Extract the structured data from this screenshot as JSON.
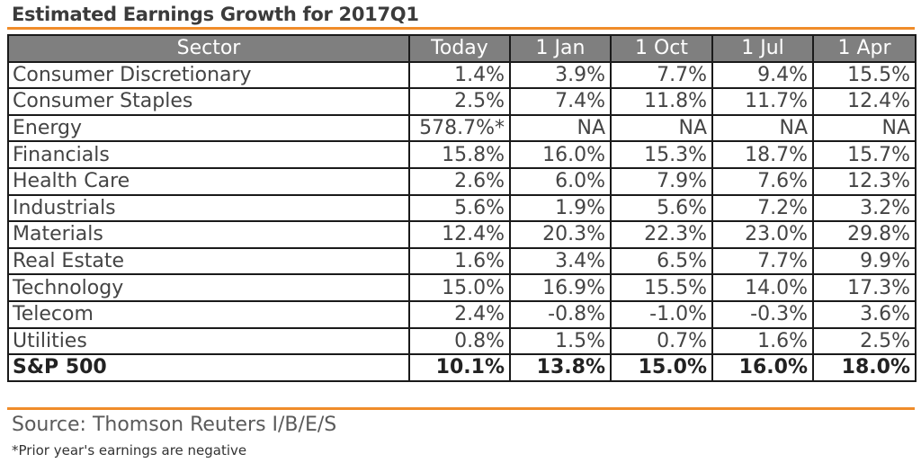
{
  "title": "Estimated Earnings Growth for  2017Q1",
  "table": {
    "headers": [
      "Sector",
      "Today",
      "1 Jan",
      "1 Oct",
      "1 Jul",
      "1 Apr"
    ],
    "rows": [
      [
        "Consumer Discretionary",
        "1.4%",
        "3.9%",
        "7.7%",
        "9.4%",
        "15.5%"
      ],
      [
        "Consumer Staples",
        "2.5%",
        "7.4%",
        "11.8%",
        "11.7%",
        "12.4%"
      ],
      [
        "Energy",
        "578.7%*",
        "NA",
        "NA",
        "NA",
        "NA"
      ],
      [
        "Financials",
        "15.8%",
        "16.0%",
        "15.3%",
        "18.7%",
        "15.7%"
      ],
      [
        "Health Care",
        "2.6%",
        "6.0%",
        "7.9%",
        "7.6%",
        "12.3%"
      ],
      [
        "Industrials",
        "5.6%",
        "1.9%",
        "5.6%",
        "7.2%",
        "3.2%"
      ],
      [
        "Materials",
        "12.4%",
        "20.3%",
        "22.3%",
        "23.0%",
        "29.8%"
      ],
      [
        "Real Estate",
        "1.6%",
        "3.4%",
        "6.5%",
        "7.7%",
        "9.9%"
      ],
      [
        "Technology",
        "15.0%",
        "16.9%",
        "15.5%",
        "14.0%",
        "17.3%"
      ],
      [
        "Telecom",
        "2.4%",
        "-0.8%",
        "-1.0%",
        "-0.3%",
        "3.6%"
      ],
      [
        "Utilities",
        "0.8%",
        "1.5%",
        "0.7%",
        "1.6%",
        "2.5%"
      ]
    ],
    "total": [
      "S&P 500",
      "10.1%",
      "13.8%",
      "15.0%",
      "16.0%",
      "18.0%"
    ]
  },
  "source": "Source: Thomson Reuters I/B/E/S",
  "footnote": "*Prior year's earnings are negative",
  "colors": {
    "accent": "#f08c2a",
    "header_bg": "#7f7f7f",
    "border": "#1a1a1a"
  }
}
